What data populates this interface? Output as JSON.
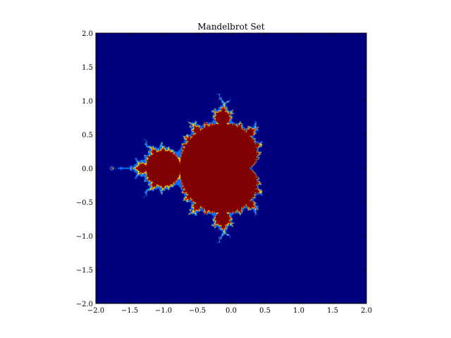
{
  "chart_data": {
    "type": "heatmap",
    "title": "Mandelbrot Set",
    "xlabel": "",
    "ylabel": "",
    "xlim": [
      -2.0,
      2.0
    ],
    "ylim": [
      -2.0,
      2.0
    ],
    "x_ticks": [
      -2.0,
      -1.5,
      -1.0,
      -0.5,
      0.0,
      0.5,
      1.0,
      1.5,
      2.0
    ],
    "y_ticks": [
      -2.0,
      -1.5,
      -1.0,
      -0.5,
      0.0,
      0.5,
      1.0,
      1.5,
      2.0
    ],
    "x_tick_labels": [
      "−2.0",
      "−1.5",
      "−1.0",
      "−0.5",
      "0.0",
      "0.5",
      "1.0",
      "1.5",
      "2.0"
    ],
    "y_tick_labels": [
      "−2.0",
      "−1.5",
      "−1.0",
      "−0.5",
      "0.0",
      "0.5",
      "1.0",
      "1.5",
      "2.0"
    ],
    "max_iterations": 50,
    "colors": {
      "outside": "#00007f",
      "inside": "#7f0000",
      "boundary_low": "#0070ff",
      "boundary_mid": "#ffe000",
      "boundary_high": "#ff3000"
    },
    "grid": false,
    "legend": "none"
  }
}
